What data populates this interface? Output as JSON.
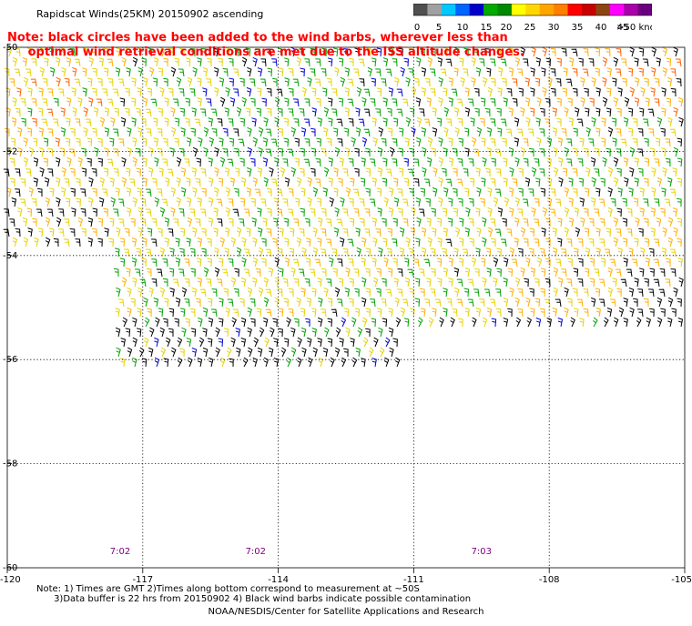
{
  "title": "Rapidscat Winds(25KM) 20150902 ascending",
  "note": {
    "line1": "Note: black circles have been added to the wind barbs, wherever less than",
    "line2": "     optimal wind retrieval conditions are met due to the ISS altitude changes."
  },
  "speed_scale": {
    "unit": "knots",
    "labels": [
      "0",
      "5",
      "10",
      "15",
      "20",
      "25",
      "30",
      "35",
      "40",
      "45",
      ">50 knots"
    ],
    "colors": [
      "#505050",
      "#a0a0a0",
      "#00c8ff",
      "#0064ff",
      "#0000c8",
      "#00aa00",
      "#008800",
      "#ffff00",
      "#ffd700",
      "#ffa500",
      "#ff7f00",
      "#ff0000",
      "#c80000",
      "#8b4513",
      "#ff00ff",
      "#aa00aa",
      "#6a0080"
    ]
  },
  "map": {
    "lon_labels": [
      "-120",
      "-117",
      "-114",
      "-111",
      "-108",
      "-105"
    ],
    "lon_values": [
      -120,
      -117,
      -114,
      -111,
      -108,
      -105
    ],
    "lat_labels": [
      "-50",
      "-52",
      "-54",
      "-56",
      "-58",
      "-60"
    ],
    "lat_values": [
      -50,
      -52,
      -54,
      -56,
      -58,
      -60
    ],
    "time_labels": [
      {
        "text": "7:02",
        "lon": -117.5
      },
      {
        "text": "7:02",
        "lon": -114.5
      },
      {
        "text": "7:03",
        "lon": -109.5
      }
    ],
    "barb_colors": {
      "low": "#0000cc",
      "moderate": "#00a000",
      "high": "#e6d200",
      "strong": "#ffb000",
      "very_strong": "#ff6000",
      "contaminated": "#000000"
    }
  },
  "footer": {
    "line1": "Note: 1) Times are GMT 2)Times along bottom correspond to measurement at ~50S",
    "line2": "      3)Data buffer is 22 hrs from 20150902 4) Black wind barbs indicate possible contamination",
    "credit": "NOAA/NESDIS/Center for Satellite Applications and Research"
  }
}
